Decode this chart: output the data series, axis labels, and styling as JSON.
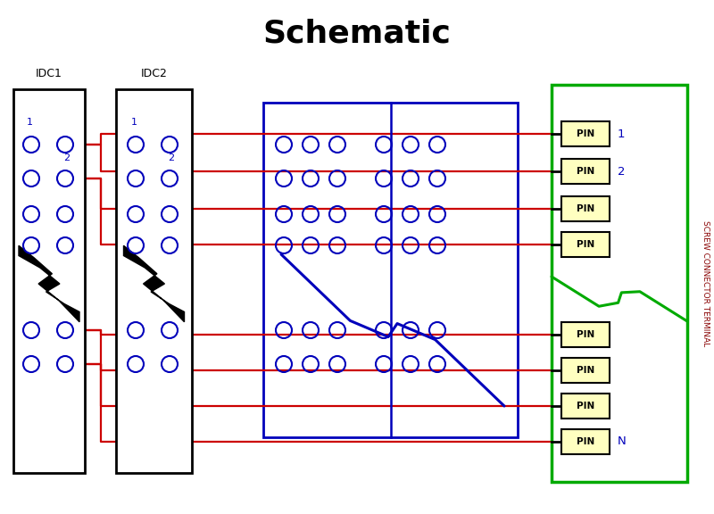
{
  "title": "Schematic",
  "title_fontsize": 26,
  "bg_color": "#ffffff",
  "red": "#cc0000",
  "blue": "#0000bb",
  "green": "#00aa00",
  "black": "#000000",
  "pin_fill": "#ffffc0",
  "idc1_label": "IDC1",
  "idc2_label": "IDC2",
  "screw_label": "SCREW CONNECTOR TERMINAL",
  "pin_labels_right": [
    "1",
    "2",
    "",
    "",
    "",
    "",
    "",
    "N"
  ],
  "figsize": [
    8.0,
    5.76
  ],
  "dpi": 100
}
